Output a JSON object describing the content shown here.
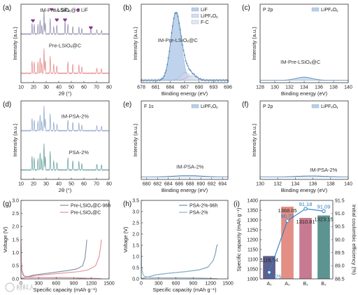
{
  "panels": [
    {
      "id": "a",
      "label": "(a)",
      "type": "line",
      "xlabel": "2θ (°)",
      "ylabel": "Intensity (a.u.)",
      "xlim": [
        10,
        80
      ],
      "ylim": [
        0,
        1
      ],
      "xticks": [
        10,
        20,
        30,
        40,
        50,
        60,
        70,
        80
      ],
      "yticks": [],
      "legend": [
        {
          "text": "Li₂SiF₆",
          "symbol": "heart",
          "color": "#8b2e8f"
        },
        {
          "text": "LiF",
          "symbol": "diamond",
          "color": "#8b2e8f"
        }
      ],
      "markers": [
        {
          "x": 19.5,
          "y": 0.79,
          "color": "#8b2e8f"
        },
        {
          "x": 38.5,
          "y": 0.8,
          "color": "#8b2e8f"
        },
        {
          "x": 45.0,
          "y": 0.8,
          "color": "#8b2e8f"
        },
        {
          "x": 65.5,
          "y": 0.7,
          "color": "#8b2e8f"
        }
      ],
      "series": [
        {
          "name": "IM-Pre-LSiOₓ@C",
          "baseline": 0.62,
          "color": "#8c86a8",
          "peaks": [
            [
              18.8,
              0.14
            ],
            [
              20.5,
              0.13
            ],
            [
              23.5,
              0.12
            ],
            [
              25.2,
              0.18
            ],
            [
              26.5,
              0.12
            ],
            [
              28.3,
              0.3
            ],
            [
              29.3,
              0.14
            ],
            [
              33.2,
              0.2
            ],
            [
              36.0,
              0.1
            ],
            [
              38.5,
              0.12
            ],
            [
              45.0,
              0.17
            ],
            [
              47.3,
              0.13
            ],
            [
              51.2,
              0.1
            ],
            [
              56.0,
              0.09
            ],
            [
              58.3,
              0.08
            ],
            [
              65.5,
              0.07
            ],
            [
              70.3,
              0.06
            ],
            [
              74.0,
              0.05
            ]
          ]
        },
        {
          "name": "Pre-LSiOₓ@C",
          "baseline": 0.12,
          "color": "#e38383",
          "peaks": [
            [
              18.8,
              0.16
            ],
            [
              20.5,
              0.15
            ],
            [
              23.5,
              0.14
            ],
            [
              25.2,
              0.2
            ],
            [
              26.5,
              0.14
            ],
            [
              28.3,
              0.32
            ],
            [
              29.3,
              0.16
            ],
            [
              33.2,
              0.22
            ],
            [
              36.0,
              0.12
            ],
            [
              38.5,
              0.1
            ],
            [
              47.3,
              0.15
            ],
            [
              51.2,
              0.12
            ],
            [
              56.0,
              0.11
            ],
            [
              58.3,
              0.09
            ],
            [
              70.3,
              0.07
            ],
            [
              74.0,
              0.06
            ]
          ]
        }
      ],
      "annotations": [
        {
          "text": "IM-Pre-LSiOₓ@C",
          "x": 41,
          "y": 0.9
        },
        {
          "text": "Pre-LSiOₓ@C",
          "x": 45,
          "y": 0.45
        }
      ]
    },
    {
      "id": "b",
      "label": "(b)",
      "type": "xps",
      "xlabel": "Binding energy (eV)",
      "ylabel": "Intensity (a.u.)",
      "xlim": [
        678,
        696
      ],
      "ylim": [
        0,
        1
      ],
      "xticks": [
        678,
        681,
        684,
        687,
        690,
        693,
        696
      ],
      "yticks": [],
      "legend": [
        {
          "text": "LiF",
          "color": "#b9cfe6"
        },
        {
          "text": "LiPFₓOᵧ",
          "color": "#d8dcee"
        },
        {
          "text": "F-C",
          "color": "#e8e8ee"
        }
      ],
      "components": [
        {
          "center": 685.2,
          "amp": 0.86,
          "width": 1.05,
          "color": "#a9c6e6"
        },
        {
          "center": 687.2,
          "amp": 0.1,
          "width": 0.9,
          "color": "#cfd4ea"
        },
        {
          "center": 688.6,
          "amp": 0.06,
          "width": 1.0,
          "color": "#e0e0ea"
        }
      ],
      "annotations": [
        {
          "text": "IM-Pre-LSiOₓ@C",
          "x": 685.6,
          "y": 0.52
        }
      ]
    },
    {
      "id": "c",
      "label": "(c)",
      "type": "xps",
      "xlabel": "Binding energy (eV)",
      "ylabel": "Intensity (a.u.)",
      "xlim": [
        128,
        140
      ],
      "ylim": [
        0,
        1
      ],
      "xticks": [
        128,
        130,
        132,
        134,
        136,
        138,
        140
      ],
      "yticks": [],
      "title": "P 2p",
      "legend": [
        {
          "text": "LiPFₓOᵧ",
          "color": "#b9cfe6"
        }
      ],
      "components": [
        {
          "center": 134.0,
          "amp": 0.04,
          "width": 1.1,
          "color": "#bcd3ea"
        }
      ],
      "annotations": [
        {
          "text": "IM-Pre-LSiOₓ@C",
          "x": 133.5,
          "y": 0.24
        }
      ]
    },
    {
      "id": "d",
      "label": "(d)",
      "type": "line",
      "xlabel": "2θ (°)",
      "ylabel": "Intensity (a.u.)",
      "xlim": [
        10,
        80
      ],
      "ylim": [
        0,
        1
      ],
      "xticks": [
        10,
        20,
        30,
        40,
        50,
        60,
        70,
        80
      ],
      "yticks": [],
      "series": [
        {
          "name": "IM-PSA-2%",
          "baseline": 0.62,
          "color": "#8aa2c9",
          "peaks": [
            [
              18.8,
              0.16
            ],
            [
              20.5,
              0.14
            ],
            [
              23.5,
              0.12
            ],
            [
              25.2,
              0.2
            ],
            [
              26.5,
              0.13
            ],
            [
              28.3,
              0.32
            ],
            [
              29.3,
              0.15
            ],
            [
              33.2,
              0.22
            ],
            [
              36.0,
              0.11
            ],
            [
              38.6,
              0.09
            ],
            [
              47.3,
              0.14
            ],
            [
              51.2,
              0.11
            ],
            [
              56.0,
              0.1
            ],
            [
              58.3,
              0.08
            ],
            [
              70.3,
              0.07
            ],
            [
              74.0,
              0.06
            ]
          ]
        },
        {
          "name": "PSA-2%",
          "baseline": 0.12,
          "color": "#5f9c9a",
          "peaks": [
            [
              18.8,
              0.18
            ],
            [
              20.5,
              0.16
            ],
            [
              23.5,
              0.14
            ],
            [
              25.2,
              0.22
            ],
            [
              26.5,
              0.15
            ],
            [
              28.3,
              0.34
            ],
            [
              29.3,
              0.17
            ],
            [
              33.2,
              0.24
            ],
            [
              36.0,
              0.12
            ],
            [
              38.6,
              0.1
            ],
            [
              47.3,
              0.16
            ],
            [
              51.2,
              0.12
            ],
            [
              56.0,
              0.11
            ],
            [
              58.3,
              0.09
            ],
            [
              70.3,
              0.08
            ],
            [
              74.0,
              0.07
            ]
          ]
        }
      ],
      "annotations": [
        {
          "text": "IM-PSA-2%",
          "x": 53,
          "y": 0.78
        },
        {
          "text": "PSA-2%",
          "x": 56,
          "y": 0.32
        }
      ]
    },
    {
      "id": "e",
      "label": "(e)",
      "type": "xps",
      "xlabel": "Binding energy (eV)",
      "ylabel": "Intensity (a.u.)",
      "xlim": [
        679,
        695
      ],
      "ylim": [
        0,
        1
      ],
      "xticks": [
        680,
        682,
        684,
        686,
        688,
        690,
        692,
        694
      ],
      "yticks": [],
      "title": "F 1s",
      "legend": [
        {
          "text": "LiPFₓOᵧ",
          "color": "#b9cfe6"
        }
      ],
      "components": [
        {
          "center": 687.6,
          "amp": 0.02,
          "width": 2.6,
          "color": "#c8d9ec"
        }
      ],
      "annotations": [
        {
          "text": "IM-PSA-2%",
          "x": 688.0,
          "y": 0.14
        }
      ]
    },
    {
      "id": "f",
      "label": "(f)",
      "type": "xps",
      "xlabel": "Binding energy (eV)",
      "ylabel": "Intensity (a.u.)",
      "xlim": [
        130,
        140
      ],
      "ylim": [
        0,
        1
      ],
      "xticks": [
        130,
        132,
        134,
        136,
        138,
        140
      ],
      "yticks": [],
      "title": "P 2p",
      "legend": [
        {
          "text": "LiPFₓOᵧ",
          "color": "#b9cfe6"
        }
      ],
      "components": [
        {
          "center": 135.8,
          "amp": 0.015,
          "width": 1.6,
          "color": "#c8d9ec"
        }
      ],
      "annotations": [
        {
          "text": "IM-PSA-2%",
          "x": 137.2,
          "y": 0.1
        }
      ]
    },
    {
      "id": "g",
      "label": "(g)",
      "type": "line",
      "xlabel": "Specific capacity (mAh g⁻¹)",
      "ylabel": "Voltage (V)",
      "xlim": [
        0,
        1500
      ],
      "ylim": [
        0,
        3.0
      ],
      "xticks": [
        0,
        300,
        600,
        900,
        1200,
        1500
      ],
      "yticks": [
        0.0,
        0.5,
        1.0,
        1.5,
        2.0,
        2.5,
        3.0
      ],
      "legend": [
        {
          "text": "Pre-LSiOₓ@C-96h",
          "color": "#7d8fa3"
        },
        {
          "text": "Pre-LSiOₓ@C",
          "color": "#e38f9a"
        }
      ],
      "curves": [
        {
          "name": "Pre-LSiOₓ@C-96h",
          "color": "#7d8fa3",
          "points": [
            [
              0,
              0.02
            ],
            [
              60,
              0.05
            ],
            [
              200,
              0.14
            ],
            [
              400,
              0.2
            ],
            [
              600,
              0.26
            ],
            [
              800,
              0.32
            ],
            [
              950,
              0.38
            ],
            [
              1050,
              0.5
            ],
            [
              1090,
              0.8
            ],
            [
              1110,
              1.2
            ],
            [
              1120,
              1.5
            ]
          ]
        },
        {
          "name": "Pre-LSiOₓ@C",
          "color": "#e38f9a",
          "points": [
            [
              0,
              0.02
            ],
            [
              80,
              0.05
            ],
            [
              250,
              0.13
            ],
            [
              500,
              0.18
            ],
            [
              750,
              0.23
            ],
            [
              1000,
              0.28
            ],
            [
              1150,
              0.35
            ],
            [
              1270,
              0.5
            ],
            [
              1330,
              0.85
            ],
            [
              1355,
              1.2
            ],
            [
              1370,
              1.5
            ]
          ]
        },
        {
          "name": "Pre-LSiOₓ@C-96h",
          "color": "#7d8fa3",
          "points": [
            [
              0,
              1.45
            ],
            [
              5,
              0.6
            ],
            [
              15,
              0.3
            ],
            [
              40,
              0.12
            ],
            [
              120,
              0.06
            ],
            [
              400,
              0.05
            ],
            [
              900,
              0.04
            ],
            [
              1116,
              0.01
            ]
          ]
        },
        {
          "name": "Pre-LSiOₓ@C",
          "color": "#e38f9a",
          "points": [
            [
              0,
              1.5
            ],
            [
              6,
              0.65
            ],
            [
              18,
              0.32
            ],
            [
              50,
              0.12
            ],
            [
              150,
              0.06
            ],
            [
              500,
              0.05
            ],
            [
              1000,
              0.04
            ],
            [
              1368,
              0.01
            ]
          ]
        }
      ]
    },
    {
      "id": "h",
      "label": "(h)",
      "type": "line",
      "xlabel": "Specific capacity (mAh g⁻¹)",
      "ylabel": "Voltage (V)",
      "xlim": [
        0,
        1500
      ],
      "ylim": [
        0,
        3.5
      ],
      "xticks": [
        0,
        300,
        600,
        900,
        1200,
        1500
      ],
      "yticks": [
        0.0,
        0.5,
        1.0,
        1.5,
        2.0,
        2.5,
        3.0,
        3.5
      ],
      "legend": [
        {
          "text": "PSA-2%-96h",
          "color": "#6a8fa0"
        },
        {
          "text": "PSA-2%",
          "color": "#8fb2c7"
        }
      ],
      "curves": [
        {
          "name": "PSA-2%-96h",
          "color": "#6a8fa0",
          "points": [
            [
              0,
              0.02
            ],
            [
              80,
              0.06
            ],
            [
              250,
              0.18
            ],
            [
              500,
              0.26
            ],
            [
              750,
              0.32
            ],
            [
              1000,
              0.4
            ],
            [
              1150,
              0.52
            ],
            [
              1240,
              0.8
            ],
            [
              1280,
              1.1
            ],
            [
              1300,
              1.4
            ],
            [
              1310,
              1.5
            ]
          ]
        },
        {
          "name": "PSA-2%",
          "color": "#8fb2c7",
          "points": [
            [
              0,
              0.02
            ],
            [
              82,
              0.06
            ],
            [
              255,
              0.18
            ],
            [
              505,
              0.26
            ],
            [
              755,
              0.32
            ],
            [
              1005,
              0.41
            ],
            [
              1155,
              0.53
            ],
            [
              1245,
              0.82
            ],
            [
              1285,
              1.12
            ],
            [
              1305,
              1.42
            ],
            [
              1323,
              1.55
            ]
          ]
        },
        {
          "name": "PSA-2%",
          "color": "#8fb2c7",
          "points": [
            [
              0,
              1.5
            ],
            [
              6,
              0.6
            ],
            [
              18,
              0.3
            ],
            [
              50,
              0.12
            ],
            [
              150,
              0.06
            ],
            [
              500,
              0.05
            ],
            [
              1000,
              0.04
            ],
            [
              1320,
              0.01
            ]
          ]
        }
      ]
    },
    {
      "id": "i",
      "label": "(i)",
      "type": "bar",
      "ylabel": "Specific capacity (mAh g⁻¹)",
      "ylabel_right": "Initial coulombic efficiency (%)",
      "ylim": [
        1000,
        1400
      ],
      "yticks": [
        1000,
        1050,
        1100,
        1150,
        1200,
        1250,
        1300,
        1350,
        1400
      ],
      "ylim_right": [
        88.5,
        91.5
      ],
      "yticks_right": [
        88.5,
        89.0,
        89.5,
        90.0,
        90.5,
        91.0,
        91.5
      ],
      "categories": [
        "A₁",
        "A₂",
        "B₁",
        "B₂"
      ],
      "values": [
        1116.54,
        1368.05,
        1310.81,
        1323.15
      ],
      "value_labels": [
        "1116.54",
        "1368.05",
        "1310.81",
        "1323.15"
      ],
      "bar_colors": [
        "#5e5f8e",
        "#e38f86",
        "#c77a92",
        "#5d9391"
      ],
      "efficiency": [
        88.75,
        90.72,
        91.18,
        91.09
      ],
      "efficiency_labels": [
        "88.75",
        "90.72",
        "91.18",
        "91.09"
      ],
      "efficiency_color": "#2a7fc5"
    }
  ],
  "watermark": {
    "text": "材料人"
  }
}
